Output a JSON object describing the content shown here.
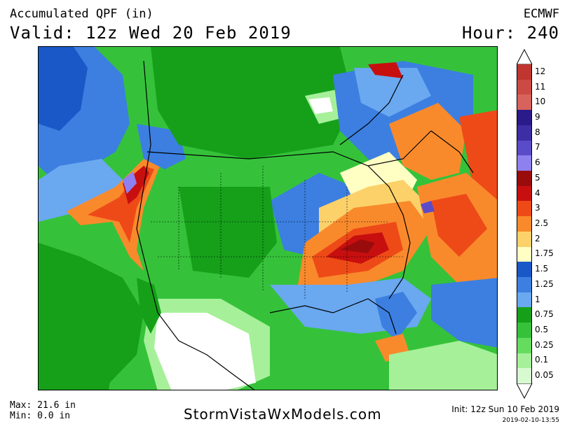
{
  "header": {
    "title": "Accumulated QPF (in)",
    "valid": "Valid: 12z Wed 20 Feb 2019",
    "model": "ECMWF",
    "hour": "Hour: 240"
  },
  "legend": {
    "bins": [
      {
        "label": "12",
        "color": "#c0352f"
      },
      {
        "label": "11",
        "color": "#cc4a44"
      },
      {
        "label": "10",
        "color": "#d8625c"
      },
      {
        "label": "9",
        "color": "#2a1a8a"
      },
      {
        "label": "8",
        "color": "#3d2ea6"
      },
      {
        "label": "7",
        "color": "#5a4cc8"
      },
      {
        "label": "6",
        "color": "#8e80ee"
      },
      {
        "label": "5",
        "color": "#9a0c0c"
      },
      {
        "label": "4",
        "color": "#c80f0f"
      },
      {
        "label": "3",
        "color": "#ee4a18"
      },
      {
        "label": "2.5",
        "color": "#f98a2c"
      },
      {
        "label": "2",
        "color": "#fcd16a"
      },
      {
        "label": "1.75",
        "color": "#ffffc4"
      },
      {
        "label": "1.5",
        "color": "#1a58c8"
      },
      {
        "label": "1.25",
        "color": "#3c7fe0"
      },
      {
        "label": "1",
        "color": "#6aa8f0"
      },
      {
        "label": "0.75",
        "color": "#16a01a"
      },
      {
        "label": "0.5",
        "color": "#35c23a"
      },
      {
        "label": "0.25",
        "color": "#65dc5e"
      },
      {
        "label": "0.1",
        "color": "#a6f09a"
      },
      {
        "label": "0.05",
        "color": "#d8fad0"
      }
    ]
  },
  "footer": {
    "max": "Max: 21.6 in",
    "min": "Min: 0.0 in",
    "site": "StormVistaWxModels.com",
    "init": "Init: 12z Sun 10 Feb 2019",
    "stamp": "2019-02-10-13:55"
  },
  "map": {
    "region": "North America",
    "colors": {
      "ocean_bg": "#16a01a",
      "dry": "#ffffff",
      "light": "#a6f09a",
      "green": "#35c23a",
      "dark_green": "#16a01a",
      "blue_light": "#6aa8f0",
      "blue": "#3c7fe0",
      "blue_dark": "#1a58c8",
      "yellow": "#ffffc4",
      "gold": "#fcd16a",
      "orange": "#f98a2c",
      "red_orange": "#ee4a18",
      "red": "#c80f0f",
      "maroon": "#9a0c0c",
      "lavender": "#8e80ee"
    }
  }
}
